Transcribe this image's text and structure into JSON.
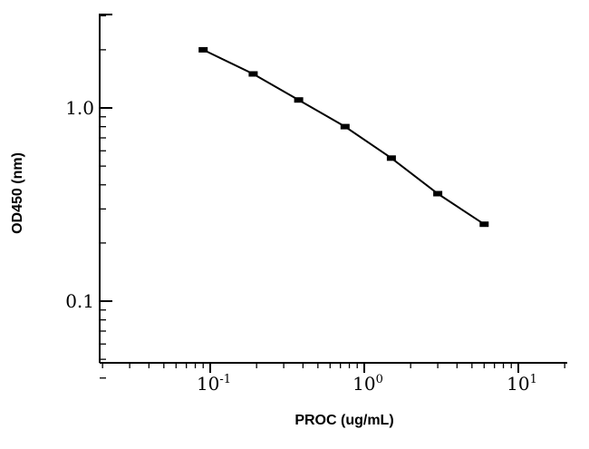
{
  "chart_data": {
    "type": "line",
    "title": "",
    "xlabel": "PROC (ug/mL)",
    "ylabel": "OD450 (nm)",
    "xscale": "log",
    "yscale": "log",
    "xlim": [
      0.02,
      20
    ],
    "ylim": [
      0.035,
      3.5
    ],
    "grid": false,
    "x_tick_labels": [
      {
        "value": 0.1,
        "base": "10",
        "exp": "-1"
      },
      {
        "value": 1,
        "base": "10",
        "exp": "0"
      },
      {
        "value": 10,
        "base": "10",
        "exp": "1"
      }
    ],
    "y_tick_labels": [
      {
        "value": 0.1,
        "text": "0.1"
      },
      {
        "value": 1.0,
        "text": "1.0"
      }
    ],
    "series": [
      {
        "x": [
          0.09,
          0.19,
          0.375,
          0.75,
          1.5,
          3.0,
          6.0
        ],
        "y": [
          2.0,
          1.5,
          1.1,
          0.8,
          0.55,
          0.36,
          0.25
        ]
      }
    ]
  }
}
